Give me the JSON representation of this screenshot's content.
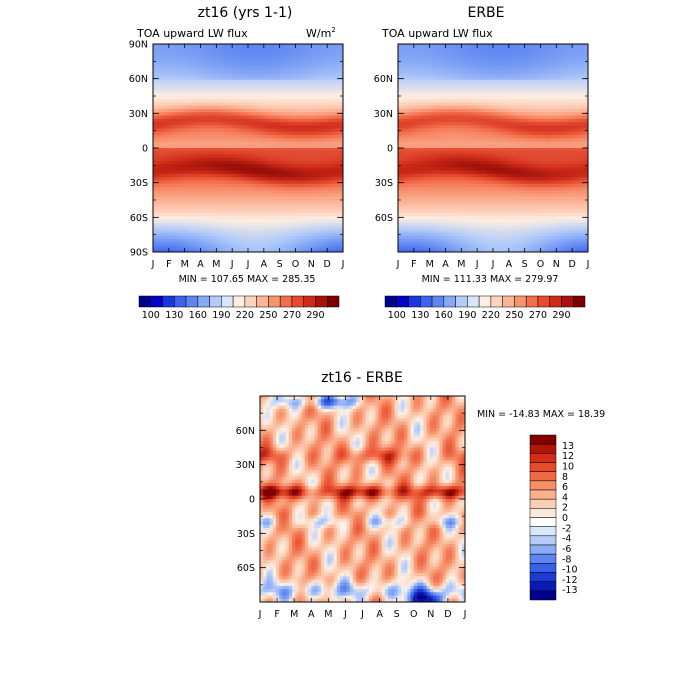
{
  "chart_data": [
    {
      "type": "heatmap",
      "id": "model",
      "title": "zt16 (yrs 1-1)",
      "subtitle": "TOA upward LW flux",
      "units_base": "W/m",
      "units_exp": "2",
      "stats": "MIN = 107.65 MAX = 285.35",
      "min": 107.65,
      "max": 285.35,
      "x_ticks": [
        "J",
        "F",
        "M",
        "A",
        "M",
        "J",
        "J",
        "A",
        "S",
        "O",
        "N",
        "D",
        "J"
      ],
      "y_ticks": [
        "90N",
        "60N",
        "30N",
        "0",
        "30S",
        "60S",
        "90S"
      ],
      "y_tick_values": [
        90,
        60,
        30,
        0,
        -30,
        -60,
        -90
      ],
      "ylim": [
        -90,
        90
      ]
    },
    {
      "type": "heatmap",
      "id": "obs",
      "title": "ERBE",
      "subtitle": "TOA upward LW flux",
      "stats": "MIN = 111.33 MAX = 279.97",
      "min": 111.33,
      "max": 279.97,
      "x_ticks": [
        "J",
        "F",
        "M",
        "A",
        "M",
        "J",
        "J",
        "A",
        "S",
        "O",
        "N",
        "D",
        "J"
      ],
      "y_ticks": [
        "60N",
        "30N",
        "0",
        "30S",
        "60S"
      ],
      "y_tick_values": [
        60,
        30,
        0,
        -30,
        -60
      ],
      "ylim": [
        -90,
        90
      ]
    },
    {
      "type": "heatmap",
      "id": "diff",
      "title": "zt16 - ERBE",
      "stats": "MIN = -14.83 MAX =  18.39",
      "min": -14.83,
      "max": 18.39,
      "x_ticks": [
        "J",
        "F",
        "M",
        "A",
        "M",
        "J",
        "J",
        "A",
        "S",
        "O",
        "N",
        "D",
        "J"
      ],
      "y_ticks": [
        "60N",
        "30N",
        "0",
        "30S",
        "60S"
      ],
      "y_tick_values": [
        60,
        30,
        0,
        -30,
        -60
      ],
      "ylim": [
        -90,
        90
      ]
    }
  ],
  "colorbar_flux": {
    "colors": [
      "#00008b",
      "#0000c8",
      "#1a35e0",
      "#3d63ee",
      "#5e86f2",
      "#86a8f5",
      "#b2cbf8",
      "#d9e7fb",
      "#fdeee2",
      "#fcd3bc",
      "#fbb495",
      "#f89370",
      "#f46e4b",
      "#ea4a2c",
      "#cf2a18",
      "#a8120a",
      "#7a0000"
    ],
    "labels": [
      "100",
      "130",
      "160",
      "190",
      "220",
      "250",
      "270",
      "290"
    ]
  },
  "colorbar_diff": {
    "colors": [
      "#00008b",
      "#0a1ab4",
      "#1c3ad6",
      "#3761e8",
      "#5d86f0",
      "#8aabf5",
      "#b5cdf8",
      "#dae8fb",
      "#ffffff",
      "#fde9dc",
      "#fbcfb4",
      "#f9b08d",
      "#f68e68",
      "#f06a45",
      "#e84a2b",
      "#d42c16",
      "#b01608",
      "#820000"
    ],
    "labels": [
      "13",
      "12",
      "10",
      "8",
      "6",
      "4",
      "2",
      "0",
      "-2",
      "-4",
      "-6",
      "-8",
      "-10",
      "-12",
      "-13"
    ]
  }
}
